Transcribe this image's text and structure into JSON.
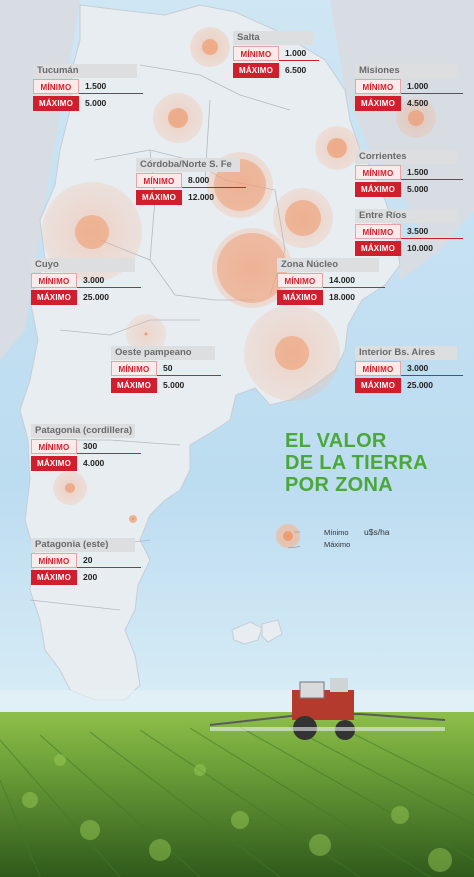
{
  "headline": {
    "line1": "EL VALOR",
    "line2": "DE LA TIERRA",
    "line3": "POR ZONA"
  },
  "legend": {
    "min_label": "Mínimo",
    "max_label": "Máximo",
    "unit": "u$s/ha"
  },
  "badges": {
    "min": "MÍNIMO",
    "max": "MÁXIMO"
  },
  "zones": [
    {
      "name": "Salta",
      "min": "1.000",
      "max": "6.500"
    },
    {
      "name": "Tucumán",
      "min": "1.500",
      "max": "5.000"
    },
    {
      "name": "Misiones",
      "min": "1.000",
      "max": "4.500"
    },
    {
      "name": "Córdoba/Norte S. Fe",
      "min": "8.000",
      "max": "12.000"
    },
    {
      "name": "Corrientes",
      "min": "1.500",
      "max": "5.000"
    },
    {
      "name": "Entre Ríos",
      "min": "3.500",
      "max": "10.000"
    },
    {
      "name": "Cuyo",
      "min": "3.000",
      "max": "25.000"
    },
    {
      "name": "Zona Núcleo",
      "min": "14.000",
      "max": "18.000"
    },
    {
      "name": "Oeste pampeano",
      "min": "50",
      "max": "5.000"
    },
    {
      "name": "Interior Bs. Aires",
      "min": "3.000",
      "max": "25.000"
    },
    {
      "name": "Patagonia (cordillera)",
      "min": "300",
      "max": "4.000"
    },
    {
      "name": "Patagonia (este)",
      "min": "20",
      "max": "200"
    }
  ],
  "colors": {
    "land": "#e4eaef",
    "sea": "#c9e2f2",
    "accent": "#d01f2c",
    "headline": "#4aa83a",
    "circle": "#f0a882"
  }
}
